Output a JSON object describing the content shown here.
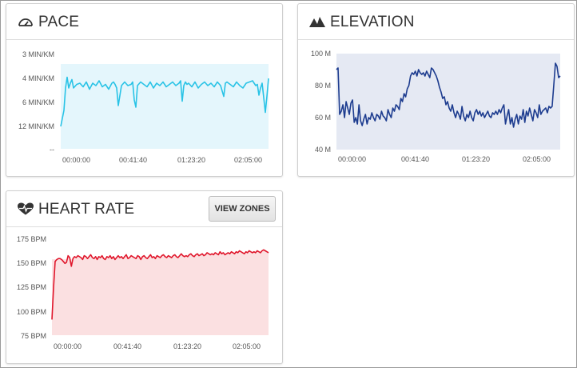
{
  "cards": {
    "pace": {
      "title": "PACE",
      "icon": "speedometer-icon"
    },
    "elevation": {
      "title": "ELEVATION",
      "icon": "mountains-icon"
    },
    "heart_rate": {
      "title": "HEART RATE",
      "icon": "heart-pulse-icon",
      "button_label": "VIEW ZONES"
    }
  },
  "chart_data": [
    {
      "id": "pace",
      "type": "area",
      "color": "#29c3e6",
      "fill": "#e4f6fc",
      "x_ticks": [
        "00:00:00",
        "00:41:40",
        "01:23:20",
        "02:05:00"
      ],
      "y_ticks": [
        "3 MIN/KM",
        "4 MIN/KM",
        "6 MIN/KM",
        "12 MIN/KM",
        "--"
      ],
      "y_axis": "pace, min/km (nonlinear)",
      "x": [
        0,
        4,
        6,
        8,
        10,
        12,
        14,
        16,
        20,
        24,
        28,
        32,
        36,
        40,
        44,
        48,
        52,
        56,
        60,
        64,
        66,
        68,
        70,
        72,
        76,
        80,
        84,
        88,
        90,
        92,
        94,
        96,
        100,
        104,
        108,
        112,
        116,
        120,
        124,
        128,
        132,
        136,
        140,
        144,
        148,
        150,
        152,
        154,
        156,
        158,
        160,
        164,
        168,
        172,
        176,
        180,
        184,
        188,
        192,
        196,
        200,
        204,
        206,
        208,
        212,
        216,
        220,
        224,
        228,
        232,
        236,
        240,
        244,
        246,
        248,
        250,
        252,
        254,
        256,
        258,
        260
      ],
      "values": [
        12,
        8,
        4.8,
        3.95,
        4.8,
        4.4,
        4.1,
        4.8,
        4.5,
        4.4,
        4.7,
        4.3,
        4.9,
        4.4,
        4.6,
        4.2,
        4.7,
        4.5,
        4.9,
        4.4,
        4.3,
        4.5,
        4.8,
        6.8,
        4.6,
        4.3,
        4.6,
        4.5,
        4.3,
        5.8,
        7.2,
        4.6,
        4.3,
        4.5,
        4.7,
        4.3,
        4.8,
        4.4,
        4.6,
        4.3,
        4.7,
        4.5,
        4.3,
        4.6,
        4.4,
        4.2,
        5.9,
        4.6,
        4.3,
        4.5,
        4.4,
        4.7,
        4.3,
        4.8,
        4.5,
        4.3,
        4.6,
        4.4,
        4.7,
        4.3,
        4.6,
        5.5,
        4.4,
        4.3,
        4.5,
        4.7,
        4.3,
        4.6,
        4.8,
        4.4,
        4.3,
        4.2,
        4.6,
        4.5,
        5.4,
        4.8,
        4.4,
        5.6,
        8.5,
        5.5,
        4.0
      ]
    },
    {
      "id": "elevation",
      "type": "area",
      "color": "#1d3c8f",
      "fill": "#e5e9f3",
      "x_ticks": [
        "00:00:00",
        "00:41:40",
        "01:23:20",
        "02:05:00"
      ],
      "y_ticks": [
        "100 M",
        "80 M",
        "60 M",
        "40 M"
      ],
      "ylim": [
        40,
        100
      ],
      "x": [
        0,
        2,
        4,
        6,
        8,
        10,
        12,
        14,
        16,
        18,
        20,
        22,
        24,
        26,
        28,
        30,
        32,
        34,
        36,
        38,
        40,
        42,
        44,
        46,
        48,
        50,
        52,
        54,
        56,
        58,
        60,
        62,
        64,
        66,
        68,
        70,
        72,
        74,
        76,
        78,
        80,
        82,
        84,
        86,
        88,
        90,
        92,
        94,
        96,
        98,
        100,
        102,
        104,
        106,
        108,
        110,
        112,
        114,
        116,
        118,
        120,
        122,
        124,
        126,
        128,
        130,
        132,
        134,
        136,
        138,
        140,
        142,
        144,
        146,
        148,
        150,
        152,
        154,
        156,
        158,
        160,
        162,
        164,
        166,
        168,
        170,
        172,
        174,
        176,
        178,
        180,
        182,
        184,
        186,
        188,
        190,
        192,
        194,
        196,
        198,
        200,
        202,
        204,
        206,
        208,
        210,
        212,
        214,
        216,
        218,
        220,
        222,
        224,
        226,
        228,
        230,
        232,
        234,
        236,
        238,
        240,
        242,
        244,
        246,
        248,
        250,
        252,
        254,
        256,
        258,
        260,
        262,
        264,
        266,
        268,
        270,
        272,
        274,
        276,
        278
      ],
      "values": [
        90,
        91,
        62,
        64,
        68,
        60,
        70,
        66,
        62,
        69,
        71,
        57,
        60,
        56,
        68,
        58,
        55,
        59,
        62,
        56,
        60,
        59,
        63,
        60,
        58,
        62,
        61,
        59,
        64,
        61,
        60,
        58,
        65,
        62,
        60,
        66,
        64,
        68,
        67,
        65,
        72,
        70,
        75,
        73,
        78,
        80,
        86,
        88,
        87,
        89,
        86,
        90,
        88,
        87,
        88,
        86,
        89,
        87,
        85,
        91,
        90,
        88,
        86,
        83,
        79,
        76,
        72,
        73,
        68,
        70,
        66,
        64,
        68,
        63,
        60,
        64,
        62,
        59,
        67,
        61,
        58,
        62,
        60,
        64,
        60,
        58,
        63,
        65,
        62,
        64,
        61,
        63,
        60,
        62,
        64,
        61,
        60,
        63,
        62,
        64,
        62,
        65,
        63,
        66,
        68,
        56,
        61,
        65,
        56,
        60,
        54,
        59,
        62,
        56,
        61,
        59,
        65,
        57,
        64,
        61,
        66,
        62,
        58,
        65,
        63,
        60,
        68,
        62,
        64,
        65,
        66,
        63,
        67,
        66,
        67,
        80,
        94,
        92,
        85,
        86
      ]
    },
    {
      "id": "heart_rate",
      "type": "area",
      "color": "#e0172c",
      "fill": "#fbe0e1",
      "x_ticks": [
        "00:00:00",
        "00:41:40",
        "01:23:20",
        "02:05:00"
      ],
      "y_ticks": [
        "175 BPM",
        "150 BPM",
        "125 BPM",
        "100 BPM",
        "75 BPM"
      ],
      "ylim": [
        75,
        175
      ],
      "x": [
        0,
        2,
        4,
        6,
        8,
        10,
        12,
        14,
        16,
        18,
        20,
        22,
        24,
        26,
        28,
        30,
        32,
        34,
        36,
        38,
        40,
        42,
        44,
        46,
        48,
        50,
        52,
        54,
        56,
        58,
        60,
        62,
        64,
        66,
        68,
        70,
        72,
        74,
        76,
        78,
        80,
        82,
        84,
        86,
        88,
        90,
        92,
        94,
        96,
        98,
        100,
        102,
        104,
        106,
        108,
        110,
        112,
        114,
        116,
        118,
        120,
        122,
        124,
        126,
        128,
        130,
        132,
        134,
        136,
        138,
        140,
        142,
        144,
        146,
        148,
        150,
        152,
        154,
        156,
        158,
        160,
        162,
        164,
        166,
        168,
        170,
        172,
        174,
        176,
        178,
        180,
        182,
        184,
        186,
        188,
        190,
        192,
        194,
        196,
        198,
        200,
        202,
        204,
        206,
        208,
        210,
        212,
        214,
        216,
        218,
        220,
        222,
        224,
        226,
        228,
        230,
        232,
        234,
        236,
        238,
        240,
        242,
        244,
        246,
        248,
        250,
        252,
        254,
        256,
        258,
        260,
        262,
        264,
        266,
        268
      ],
      "values": [
        92,
        125,
        152,
        154,
        155,
        155,
        154,
        152,
        150,
        151,
        158,
        156,
        147,
        155,
        157,
        156,
        158,
        157,
        156,
        154,
        158,
        157,
        155,
        157,
        159,
        156,
        155,
        157,
        154,
        157,
        156,
        158,
        155,
        154,
        157,
        156,
        158,
        155,
        157,
        154,
        156,
        158,
        156,
        157,
        155,
        157,
        159,
        155,
        156,
        158,
        157,
        156,
        155,
        158,
        157,
        154,
        157,
        158,
        156,
        155,
        157,
        159,
        156,
        157,
        155,
        158,
        157,
        156,
        158,
        159,
        157,
        156,
        158,
        157,
        156,
        158,
        159,
        157,
        156,
        158,
        160,
        158,
        157,
        158,
        157,
        159,
        160,
        158,
        157,
        159,
        160,
        158,
        159,
        160,
        158,
        159,
        161,
        160,
        159,
        160,
        159,
        161,
        160,
        159,
        162,
        160,
        161,
        159,
        160,
        161,
        160,
        162,
        161,
        160,
        162,
        161,
        163,
        162,
        161,
        160,
        162,
        161,
        163,
        162,
        161,
        162,
        161,
        163,
        162,
        161,
        163,
        164,
        163,
        162,
        161
      ]
    }
  ]
}
